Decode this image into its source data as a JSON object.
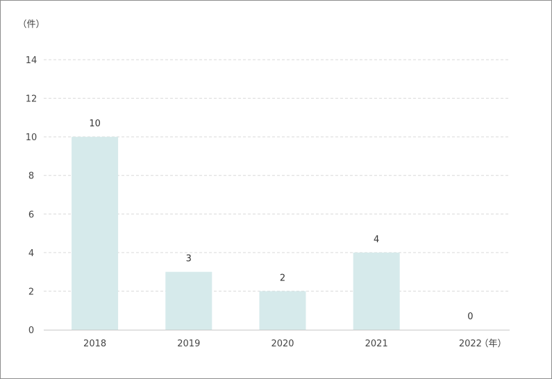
{
  "chart_data": {
    "type": "bar",
    "y_unit": "（件）",
    "x_unit": "（年）",
    "categories": [
      "2018",
      "2019",
      "2020",
      "2021",
      "2022"
    ],
    "values": [
      10,
      3,
      2,
      4,
      0
    ],
    "ylim": [
      0,
      14
    ],
    "yticks": [
      0,
      2,
      4,
      6,
      8,
      10,
      12,
      14
    ],
    "grid": true,
    "bar_color": "#d6eaeb",
    "grid_color": "#d9d9d9",
    "axis_color": "#c8c8c8"
  }
}
